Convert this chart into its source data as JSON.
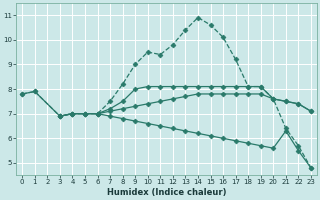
{
  "xlabel": "Humidex (Indice chaleur)",
  "xlim": [
    -0.5,
    23.5
  ],
  "ylim": [
    4.5,
    11.5
  ],
  "xticks": [
    0,
    1,
    2,
    3,
    4,
    5,
    6,
    7,
    8,
    9,
    10,
    11,
    12,
    13,
    14,
    15,
    16,
    17,
    18,
    19,
    20,
    21,
    22,
    23
  ],
  "yticks": [
    5,
    6,
    7,
    8,
    9,
    10,
    11
  ],
  "bg_color": "#cce8e8",
  "grid_color": "#b0d0d0",
  "line_color": "#2a7a6a",
  "lines": [
    {
      "x": [
        0,
        1,
        3,
        4,
        5,
        6,
        7,
        8,
        9,
        10,
        11,
        12,
        13,
        14,
        15,
        16,
        17,
        18,
        19,
        20,
        21,
        22,
        23
      ],
      "y": [
        7.8,
        7.9,
        6.9,
        7.0,
        7.0,
        7.0,
        7.5,
        8.2,
        9.0,
        9.5,
        9.4,
        9.8,
        10.4,
        10.9,
        10.6,
        10.1,
        9.2,
        8.1,
        8.1,
        7.6,
        6.4,
        5.7,
        4.8
      ],
      "marker": "D",
      "markersize": 2.5,
      "linestyle": "--",
      "linewidth": 0.9
    },
    {
      "x": [
        0,
        1,
        3,
        4,
        5,
        6,
        7,
        8,
        9,
        10,
        11,
        12,
        13,
        14,
        15,
        16,
        17,
        18,
        19,
        20,
        21,
        22,
        23
      ],
      "y": [
        7.8,
        7.9,
        6.9,
        7.0,
        7.0,
        7.0,
        7.2,
        7.5,
        8.0,
        8.1,
        8.1,
        8.1,
        8.1,
        8.1,
        8.1,
        8.1,
        8.1,
        8.1,
        8.1,
        7.6,
        7.5,
        7.4,
        7.1
      ],
      "marker": "D",
      "markersize": 2.5,
      "linestyle": "-",
      "linewidth": 0.9
    },
    {
      "x": [
        3,
        4,
        5,
        6,
        7,
        8,
        9,
        10,
        11,
        12,
        13,
        14,
        15,
        16,
        17,
        18,
        19,
        20,
        21,
        22,
        23
      ],
      "y": [
        6.9,
        7.0,
        7.0,
        7.0,
        7.1,
        7.2,
        7.3,
        7.4,
        7.5,
        7.6,
        7.7,
        7.8,
        7.8,
        7.8,
        7.8,
        7.8,
        7.8,
        7.6,
        7.5,
        7.4,
        7.1
      ],
      "marker": "D",
      "markersize": 2.5,
      "linestyle": "-",
      "linewidth": 0.9
    },
    {
      "x": [
        3,
        4,
        5,
        6,
        7,
        8,
        9,
        10,
        11,
        12,
        13,
        14,
        15,
        16,
        17,
        18,
        19,
        20,
        21,
        22,
        23
      ],
      "y": [
        6.9,
        7.0,
        7.0,
        7.0,
        6.9,
        6.8,
        6.7,
        6.6,
        6.5,
        6.4,
        6.3,
        6.2,
        6.1,
        6.0,
        5.9,
        5.8,
        5.7,
        5.6,
        6.3,
        5.5,
        4.8
      ],
      "marker": "D",
      "markersize": 2.5,
      "linestyle": "-",
      "linewidth": 0.9
    }
  ]
}
